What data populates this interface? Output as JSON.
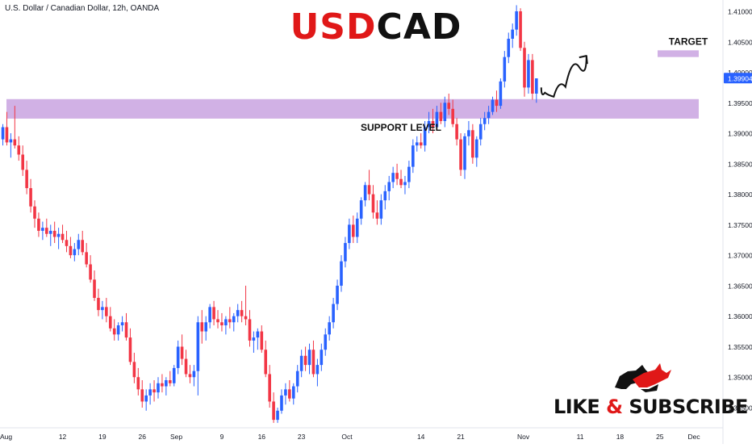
{
  "header": {
    "symbol": "U.S. Dollar / Canadian Dollar, 12h, OANDA",
    "title_part1": "USD",
    "title_part2": "CAD"
  },
  "brand": {
    "like": "LIKE",
    "amp": "&",
    "subscribe": "SUBSCRIBE"
  },
  "chart_data": {
    "type": "candlestick",
    "y_axis_labels": [
      "1.41000",
      "1.40500",
      "1.40000",
      "1.39500",
      "1.39000",
      "1.38500",
      "1.38000",
      "1.37500",
      "1.37000",
      "1.36500",
      "1.36000",
      "1.35500",
      "1.35000",
      "1.34500"
    ],
    "x_axis_labels": [
      {
        "label": "Aug",
        "day": 0
      },
      {
        "label": "12",
        "day": 11
      },
      {
        "label": "19",
        "day": 18
      },
      {
        "label": "26",
        "day": 25
      },
      {
        "label": "Sep",
        "day": 31
      },
      {
        "label": "9",
        "day": 39
      },
      {
        "label": "16",
        "day": 46
      },
      {
        "label": "23",
        "day": 53
      },
      {
        "label": "Oct",
        "day": 61
      },
      {
        "label": "14",
        "day": 74
      },
      {
        "label": "21",
        "day": 81
      },
      {
        "label": "Nov",
        "day": 92
      },
      {
        "label": "11",
        "day": 102
      },
      {
        "label": "18",
        "day": 109
      },
      {
        "label": "25",
        "day": 116
      },
      {
        "label": "Dec",
        "day": 122
      }
    ],
    "last_price": "1.39904",
    "up_color": "#2962ff",
    "down_color": "#f23645",
    "zone_color": "#c9a3e0",
    "support_zone": {
      "low": 1.3924,
      "high": 1.3956,
      "label": "SUPPORT LEVEL"
    },
    "target_zone": {
      "low": 1.4025,
      "high": 1.4036,
      "label": "TARGET"
    },
    "candles": [
      [
        1.389,
        1.3915,
        1.388,
        1.391
      ],
      [
        1.391,
        1.3935,
        1.388,
        1.3885
      ],
      [
        1.3885,
        1.39,
        1.386,
        1.389
      ],
      [
        1.389,
        1.3945,
        1.3875,
        1.388
      ],
      [
        1.388,
        1.3895,
        1.3855,
        1.3865
      ],
      [
        1.3865,
        1.388,
        1.383,
        1.384
      ],
      [
        1.384,
        1.3855,
        1.38,
        1.381
      ],
      [
        1.381,
        1.3825,
        1.377,
        1.378
      ],
      [
        1.378,
        1.379,
        1.3745,
        1.376
      ],
      [
        1.376,
        1.377,
        1.373,
        1.374
      ],
      [
        1.374,
        1.3755,
        1.3725,
        1.3745
      ],
      [
        1.3745,
        1.376,
        1.373,
        1.3735
      ],
      [
        1.3735,
        1.375,
        1.3715,
        1.374
      ],
      [
        1.374,
        1.3755,
        1.372,
        1.373
      ],
      [
        1.373,
        1.3745,
        1.371,
        1.3735
      ],
      [
        1.3735,
        1.375,
        1.372,
        1.3725
      ],
      [
        1.3725,
        1.374,
        1.3705,
        1.3715
      ],
      [
        1.3715,
        1.373,
        1.3695,
        1.37
      ],
      [
        1.37,
        1.372,
        1.369,
        1.371
      ],
      [
        1.371,
        1.3735,
        1.37,
        1.3725
      ],
      [
        1.3725,
        1.374,
        1.37,
        1.3705
      ],
      [
        1.3705,
        1.372,
        1.368,
        1.3685
      ],
      [
        1.3685,
        1.37,
        1.3655,
        1.366
      ],
      [
        1.366,
        1.3675,
        1.3625,
        1.363
      ],
      [
        1.363,
        1.3645,
        1.36,
        1.361
      ],
      [
        1.361,
        1.3625,
        1.3595,
        1.3615
      ],
      [
        1.3615,
        1.363,
        1.359,
        1.36
      ],
      [
        1.36,
        1.3615,
        1.3575,
        1.358
      ],
      [
        1.358,
        1.3595,
        1.356,
        1.357
      ],
      [
        1.357,
        1.359,
        1.356,
        1.3585
      ],
      [
        1.3585,
        1.36,
        1.3575,
        1.359
      ],
      [
        1.359,
        1.3605,
        1.356,
        1.3565
      ],
      [
        1.3565,
        1.358,
        1.352,
        1.3525
      ],
      [
        1.3525,
        1.354,
        1.349,
        1.35
      ],
      [
        1.35,
        1.3515,
        1.347,
        1.348
      ],
      [
        1.348,
        1.3495,
        1.345,
        1.346
      ],
      [
        1.346,
        1.348,
        1.3445,
        1.347
      ],
      [
        1.347,
        1.349,
        1.3455,
        1.348
      ],
      [
        1.348,
        1.3495,
        1.346,
        1.3475
      ],
      [
        1.3475,
        1.35,
        1.3465,
        1.349
      ],
      [
        1.349,
        1.3505,
        1.3475,
        1.3485
      ],
      [
        1.3485,
        1.35,
        1.347,
        1.3495
      ],
      [
        1.3495,
        1.351,
        1.3485,
        1.349
      ],
      [
        1.349,
        1.352,
        1.3485,
        1.3515
      ],
      [
        1.3515,
        1.356,
        1.3505,
        1.355
      ],
      [
        1.355,
        1.357,
        1.352,
        1.353
      ],
      [
        1.353,
        1.3545,
        1.35,
        1.3505
      ],
      [
        1.3505,
        1.352,
        1.349,
        1.35
      ],
      [
        1.35,
        1.352,
        1.3485,
        1.351
      ],
      [
        1.351,
        1.36,
        1.347,
        1.359
      ],
      [
        1.359,
        1.361,
        1.3555,
        1.3575
      ],
      [
        1.3575,
        1.36,
        1.356,
        1.359
      ],
      [
        1.359,
        1.362,
        1.358,
        1.3615
      ],
      [
        1.3615,
        1.3625,
        1.3585,
        1.3595
      ],
      [
        1.3595,
        1.361,
        1.358,
        1.359
      ],
      [
        1.359,
        1.3605,
        1.3575,
        1.3585
      ],
      [
        1.3585,
        1.36,
        1.357,
        1.3595
      ],
      [
        1.3595,
        1.3615,
        1.358,
        1.359
      ],
      [
        1.359,
        1.3605,
        1.3575,
        1.36
      ],
      [
        1.36,
        1.362,
        1.359,
        1.361
      ],
      [
        1.361,
        1.3625,
        1.359,
        1.36
      ],
      [
        1.36,
        1.365,
        1.3585,
        1.3595
      ],
      [
        1.3595,
        1.361,
        1.355,
        1.356
      ],
      [
        1.356,
        1.3575,
        1.354,
        1.3565
      ],
      [
        1.3565,
        1.358,
        1.3545,
        1.3575
      ],
      [
        1.3575,
        1.3585,
        1.354,
        1.3545
      ],
      [
        1.3545,
        1.356,
        1.35,
        1.3505
      ],
      [
        1.3505,
        1.352,
        1.345,
        1.346
      ],
      [
        1.346,
        1.3475,
        1.3425,
        1.343
      ],
      [
        1.343,
        1.345,
        1.3425,
        1.3445
      ],
      [
        1.3445,
        1.348,
        1.344,
        1.347
      ],
      [
        1.347,
        1.349,
        1.3455,
        1.348
      ],
      [
        1.348,
        1.3495,
        1.346,
        1.3465
      ],
      [
        1.3465,
        1.349,
        1.3455,
        1.3485
      ],
      [
        1.3485,
        1.352,
        1.3475,
        1.351
      ],
      [
        1.351,
        1.3545,
        1.35,
        1.3535
      ],
      [
        1.3535,
        1.355,
        1.351,
        1.352
      ],
      [
        1.352,
        1.3555,
        1.3505,
        1.3545
      ],
      [
        1.3545,
        1.356,
        1.35,
        1.3505
      ],
      [
        1.3505,
        1.353,
        1.3485,
        1.352
      ],
      [
        1.352,
        1.3555,
        1.351,
        1.3545
      ],
      [
        1.3545,
        1.358,
        1.3535,
        1.357
      ],
      [
        1.357,
        1.36,
        1.356,
        1.359
      ],
      [
        1.359,
        1.363,
        1.358,
        1.362
      ],
      [
        1.362,
        1.366,
        1.361,
        1.365
      ],
      [
        1.365,
        1.37,
        1.364,
        1.369
      ],
      [
        1.369,
        1.373,
        1.368,
        1.372
      ],
      [
        1.372,
        1.376,
        1.371,
        1.375
      ],
      [
        1.375,
        1.3765,
        1.372,
        1.373
      ],
      [
        1.373,
        1.377,
        1.372,
        1.376
      ],
      [
        1.376,
        1.3795,
        1.375,
        1.379
      ],
      [
        1.379,
        1.382,
        1.378,
        1.3815
      ],
      [
        1.3815,
        1.384,
        1.379,
        1.38
      ],
      [
        1.38,
        1.3815,
        1.376,
        1.377
      ],
      [
        1.377,
        1.379,
        1.375,
        1.376
      ],
      [
        1.376,
        1.38,
        1.375,
        1.379
      ],
      [
        1.379,
        1.3815,
        1.3775,
        1.3805
      ],
      [
        1.3805,
        1.383,
        1.379,
        1.382
      ],
      [
        1.382,
        1.3845,
        1.381,
        1.3835
      ],
      [
        1.3835,
        1.385,
        1.3815,
        1.3825
      ],
      [
        1.3825,
        1.384,
        1.381,
        1.3815
      ],
      [
        1.3815,
        1.383,
        1.38,
        1.382
      ],
      [
        1.382,
        1.3855,
        1.381,
        1.3845
      ],
      [
        1.3845,
        1.389,
        1.3835,
        1.388
      ],
      [
        1.388,
        1.3895,
        1.387,
        1.3885
      ],
      [
        1.3885,
        1.39,
        1.3875,
        1.388
      ],
      [
        1.388,
        1.392,
        1.387,
        1.391
      ],
      [
        1.391,
        1.3935,
        1.39,
        1.392
      ],
      [
        1.392,
        1.394,
        1.39,
        1.391
      ],
      [
        1.391,
        1.3945,
        1.3905,
        1.3935
      ],
      [
        1.3935,
        1.395,
        1.3915,
        1.392
      ],
      [
        1.392,
        1.396,
        1.391,
        1.395
      ],
      [
        1.395,
        1.3965,
        1.393,
        1.394
      ],
      [
        1.394,
        1.3955,
        1.391,
        1.3915
      ],
      [
        1.3915,
        1.3925,
        1.388,
        1.389
      ],
      [
        1.389,
        1.39,
        1.383,
        1.384
      ],
      [
        1.384,
        1.39,
        1.3825,
        1.3895
      ],
      [
        1.3895,
        1.392,
        1.388,
        1.3905
      ],
      [
        1.3905,
        1.3915,
        1.385,
        1.386
      ],
      [
        1.386,
        1.3895,
        1.3845,
        1.389
      ],
      [
        1.389,
        1.3925,
        1.388,
        1.3915
      ],
      [
        1.3915,
        1.3935,
        1.3905,
        1.3925
      ],
      [
        1.3925,
        1.3945,
        1.3915,
        1.3935
      ],
      [
        1.3935,
        1.396,
        1.393,
        1.3955
      ],
      [
        1.3955,
        1.397,
        1.3935,
        1.3945
      ],
      [
        1.3945,
        1.399,
        1.394,
        1.3985
      ],
      [
        1.3985,
        1.4035,
        1.3975,
        1.4025
      ],
      [
        1.4025,
        1.4065,
        1.4015,
        1.4055
      ],
      [
        1.4055,
        1.408,
        1.404,
        1.407
      ],
      [
        1.407,
        1.411,
        1.406,
        1.41
      ],
      [
        1.41,
        1.4105,
        1.4035,
        1.404
      ],
      [
        1.404,
        1.405,
        1.396,
        1.3975
      ],
      [
        1.3975,
        1.403,
        1.3965,
        1.402
      ],
      [
        1.402,
        1.403,
        1.3955,
        1.3965
      ],
      [
        1.3965,
        1.399,
        1.395,
        1.399
      ]
    ],
    "projection": [
      [
        1.3975,
        0
      ],
      [
        1.3958,
        0.9
      ],
      [
        1.3962,
        2.2
      ],
      [
        1.399,
        3.8
      ],
      [
        1.4027,
        5.6
      ]
    ]
  }
}
